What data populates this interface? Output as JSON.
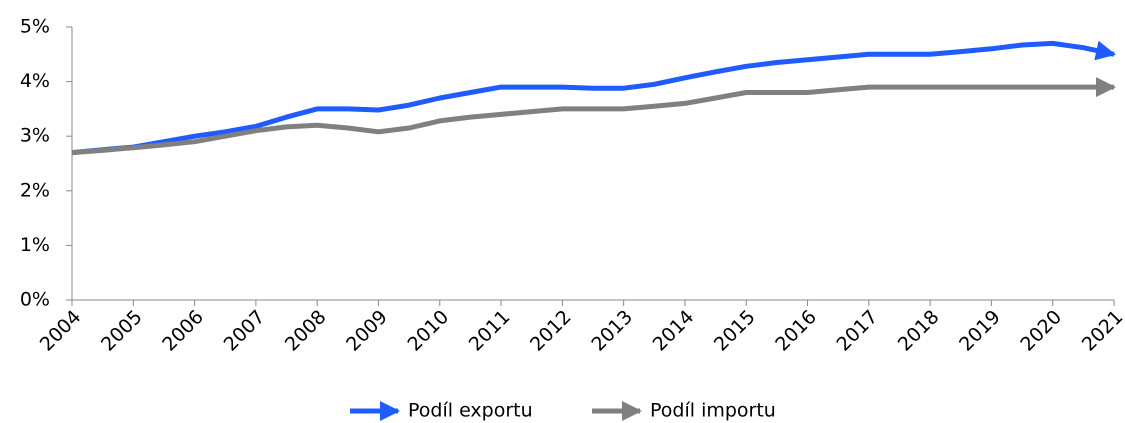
{
  "chart_data": {
    "type": "line",
    "x": [
      2004,
      2004.5,
      2005,
      2005.5,
      2006,
      2006.5,
      2007,
      2007.5,
      2008,
      2008.5,
      2009,
      2009.5,
      2010,
      2010.5,
      2011,
      2011.5,
      2012,
      2012.5,
      2013,
      2013.5,
      2014,
      2014.5,
      2015,
      2015.5,
      2016,
      2016.5,
      2017,
      2017.5,
      2018,
      2018.5,
      2019,
      2019.5,
      2020,
      2020.5,
      2021
    ],
    "series": [
      {
        "name": "Podíl exportu",
        "color": "#1f5cff",
        "values": [
          2.7,
          2.75,
          2.8,
          2.9,
          3.0,
          3.08,
          3.18,
          3.35,
          3.5,
          3.5,
          3.48,
          3.57,
          3.7,
          3.8,
          3.9,
          3.9,
          3.9,
          3.88,
          3.88,
          3.95,
          4.07,
          4.18,
          4.28,
          4.35,
          4.4,
          4.45,
          4.5,
          4.5,
          4.5,
          4.55,
          4.6,
          4.67,
          4.7,
          4.62,
          4.5
        ]
      },
      {
        "name": "Podíl importu",
        "color": "#808080",
        "values": [
          2.7,
          2.74,
          2.79,
          2.84,
          2.9,
          3.0,
          3.1,
          3.17,
          3.2,
          3.15,
          3.08,
          3.15,
          3.28,
          3.35,
          3.4,
          3.45,
          3.5,
          3.5,
          3.5,
          3.55,
          3.6,
          3.7,
          3.8,
          3.8,
          3.8,
          3.85,
          3.9,
          3.9,
          3.9,
          3.9,
          3.9,
          3.9,
          3.9,
          3.9,
          3.9
        ]
      }
    ],
    "xlim": [
      2004,
      2021
    ],
    "xticks": [
      2004,
      2005,
      2006,
      2007,
      2008,
      2009,
      2010,
      2011,
      2012,
      2013,
      2014,
      2015,
      2016,
      2017,
      2018,
      2019,
      2020,
      2021
    ],
    "ylim": [
      0,
      5
    ],
    "yticks": [
      {
        "value": 0,
        "label": "0%"
      },
      {
        "value": 1,
        "label": "1%"
      },
      {
        "value": 2,
        "label": "2%"
      },
      {
        "value": 3,
        "label": "3%"
      },
      {
        "value": 4,
        "label": "4%"
      },
      {
        "value": 5,
        "label": "5%"
      }
    ],
    "grid": false,
    "legend": "bottom"
  }
}
